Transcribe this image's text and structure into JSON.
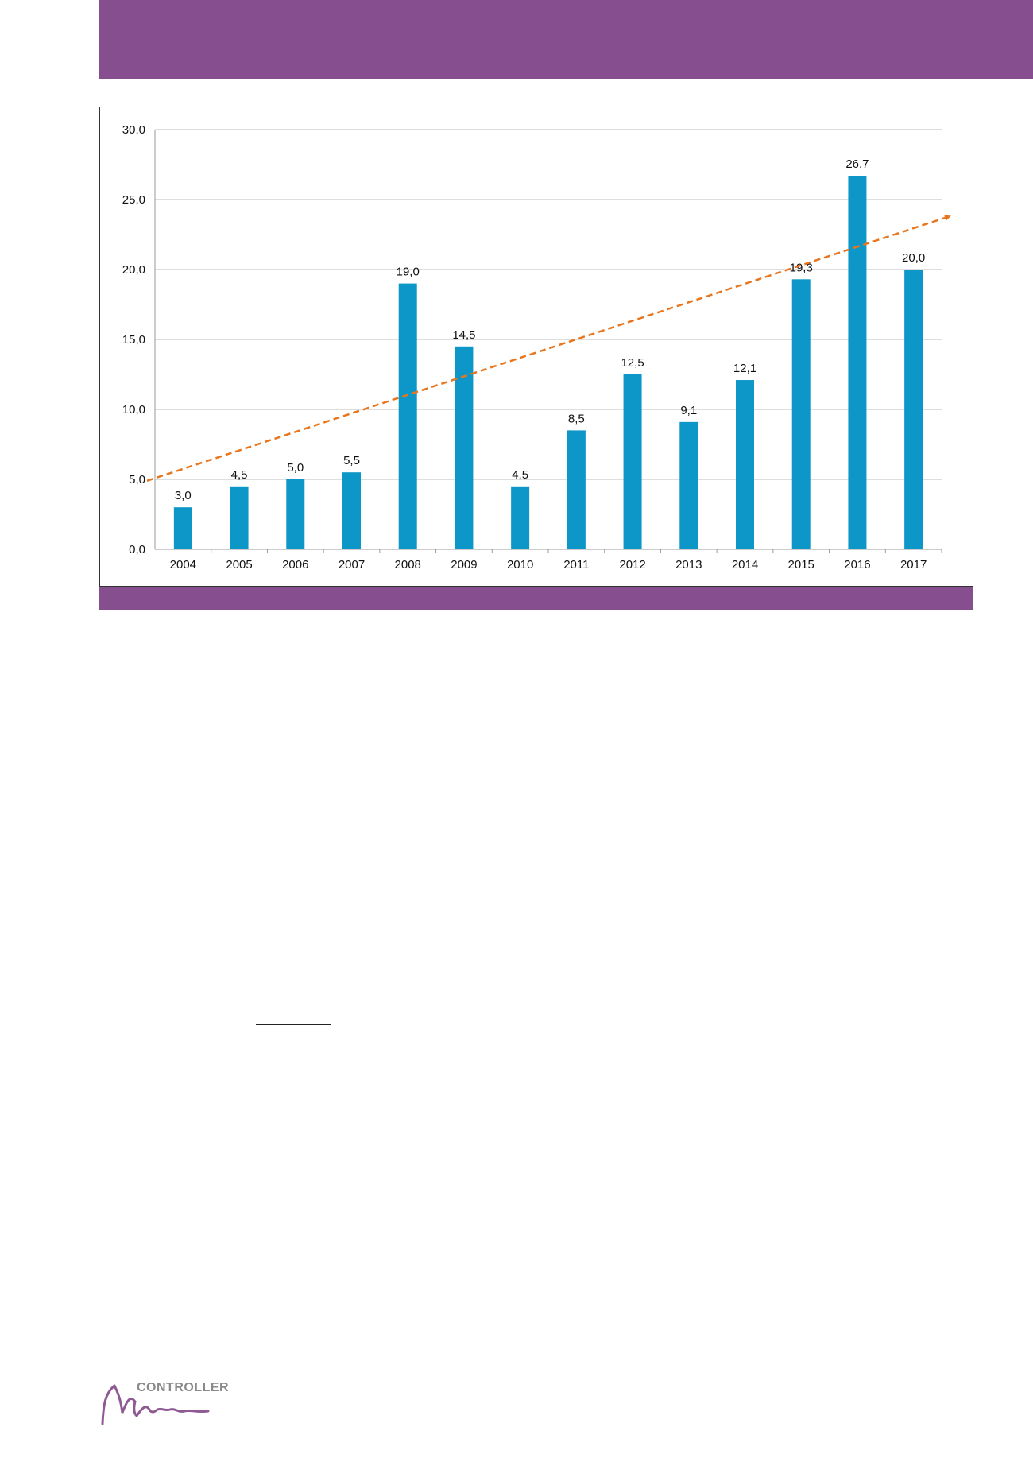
{
  "colors": {
    "band": "#874e8f",
    "bar": "#0d96c8",
    "trend": "#e8761e",
    "grid": "#bdbdbd",
    "logo_mark": "#8f5a94"
  },
  "logo": {
    "text": "CONTROLLER"
  },
  "chart_data": {
    "type": "bar",
    "title": "",
    "xlabel": "",
    "ylabel": "",
    "categories": [
      "2004",
      "2005",
      "2006",
      "2007",
      "2008",
      "2009",
      "2010",
      "2011",
      "2012",
      "2013",
      "2014",
      "2015",
      "2016",
      "2017"
    ],
    "values": [
      3.0,
      4.5,
      5.0,
      5.5,
      19.0,
      14.5,
      4.5,
      8.5,
      12.5,
      9.1,
      12.1,
      19.3,
      26.7,
      20.0
    ],
    "value_labels": [
      "3,0",
      "4,5",
      "5,0",
      "5,5",
      "19,0",
      "14,5",
      "4,5",
      "8,5",
      "12,5",
      "9,1",
      "12,1",
      "19,3",
      "26,7",
      "20,0"
    ],
    "yticks": [
      "0,0",
      "5,0",
      "10,0",
      "15,0",
      "20,0",
      "25,0",
      "30,0"
    ],
    "ylim": [
      0,
      30
    ],
    "grid": true,
    "legend": "none",
    "trendline": {
      "style": "dashed-arrow",
      "start": 4.9,
      "end": 23.8
    }
  }
}
